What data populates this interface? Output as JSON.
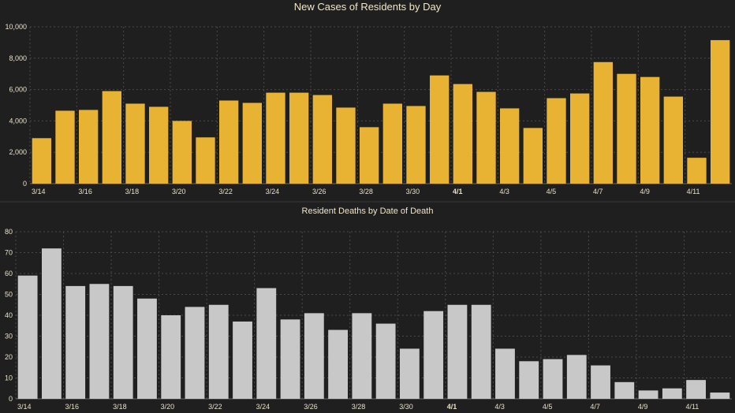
{
  "chart_data": [
    {
      "type": "bar",
      "title": "New Cases of Residents by Day",
      "color": "#e8b233",
      "ylim": [
        0,
        10000
      ],
      "yticks": [
        0,
        2000,
        4000,
        6000,
        8000,
        10000
      ],
      "ytick_labels": [
        "0",
        "2,000",
        "4,000",
        "6,000",
        "8,000",
        "10,000"
      ],
      "grid": true,
      "categories": [
        "3/14",
        "3/15",
        "3/16",
        "3/17",
        "3/18",
        "3/19",
        "3/20",
        "3/21",
        "3/22",
        "3/23",
        "3/24",
        "3/25",
        "3/26",
        "3/27",
        "3/28",
        "3/29",
        "3/30",
        "3/31",
        "4/1",
        "4/2",
        "4/3",
        "4/4",
        "4/5",
        "4/6",
        "4/7",
        "4/8",
        "4/9",
        "4/10",
        "4/11",
        "4/12"
      ],
      "xtick_labels": [
        "3/14",
        "",
        "3/16",
        "",
        "3/18",
        "",
        "3/20",
        "",
        "3/22",
        "",
        "3/24",
        "",
        "3/26",
        "",
        "3/28",
        "",
        "3/30",
        "",
        "4/1",
        "",
        "4/3",
        "",
        "4/5",
        "",
        "4/7",
        "",
        "4/9",
        "",
        "4/11",
        ""
      ],
      "bold_ticks": [
        "4/1"
      ],
      "values": [
        2900,
        4650,
        4700,
        5900,
        5100,
        4900,
        4000,
        2950,
        5300,
        5150,
        5800,
        5800,
        5650,
        4850,
        3600,
        5100,
        4950,
        6900,
        6350,
        5850,
        4800,
        3550,
        5450,
        5750,
        7750,
        7000,
        6800,
        5550,
        1650,
        9150
      ]
    },
    {
      "type": "bar",
      "title": "Resident Deaths by Date of Death",
      "color": "#c8c8c8",
      "ylim": [
        0,
        80
      ],
      "yticks": [
        0,
        10,
        20,
        30,
        40,
        50,
        60,
        70,
        80
      ],
      "ytick_labels": [
        "0",
        "10",
        "20",
        "30",
        "40",
        "50",
        "60",
        "70",
        "80"
      ],
      "grid": true,
      "categories": [
        "3/14",
        "3/15",
        "3/16",
        "3/17",
        "3/18",
        "3/19",
        "3/20",
        "3/21",
        "3/22",
        "3/23",
        "3/24",
        "3/25",
        "3/26",
        "3/27",
        "3/28",
        "3/29",
        "3/30",
        "3/31",
        "4/1",
        "4/2",
        "4/3",
        "4/4",
        "4/5",
        "4/6",
        "4/7",
        "4/8",
        "4/9",
        "4/10",
        "4/11",
        "4/12"
      ],
      "xtick_labels": [
        "3/14",
        "",
        "3/16",
        "",
        "3/18",
        "",
        "3/20",
        "",
        "3/22",
        "",
        "3/24",
        "",
        "3/26",
        "",
        "3/28",
        "",
        "3/30",
        "",
        "4/1",
        "",
        "4/3",
        "",
        "4/5",
        "",
        "4/7",
        "",
        "4/9",
        "",
        "4/11",
        ""
      ],
      "bold_ticks": [
        "4/1"
      ],
      "values": [
        59,
        72,
        54,
        55,
        54,
        48,
        40,
        44,
        45,
        37,
        53,
        38,
        41,
        33,
        41,
        36,
        24,
        42,
        45,
        45,
        24,
        18,
        19,
        21,
        16,
        8,
        4,
        5,
        9,
        3
      ]
    }
  ]
}
